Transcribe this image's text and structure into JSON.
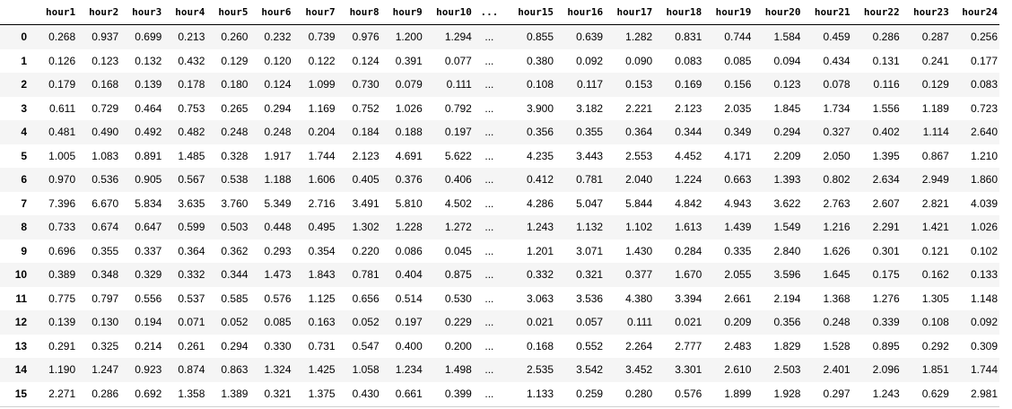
{
  "table": {
    "columns": [
      "",
      "hour1",
      "hour2",
      "hour3",
      "hour4",
      "hour5",
      "hour6",
      "hour7",
      "hour8",
      "hour9",
      "hour10",
      "...",
      "hour15",
      "hour16",
      "hour17",
      "hour18",
      "hour19",
      "hour20",
      "hour21",
      "hour22",
      "hour23",
      "hour24"
    ],
    "rows": [
      {
        "index": "0",
        "values": [
          "0.268",
          "0.937",
          "0.699",
          "0.213",
          "0.260",
          "0.232",
          "0.739",
          "0.976",
          "1.200",
          "1.294",
          "...",
          "0.855",
          "0.639",
          "1.282",
          "0.831",
          "0.744",
          "1.584",
          "0.459",
          "0.286",
          "0.287",
          "0.256"
        ]
      },
      {
        "index": "1",
        "values": [
          "0.126",
          "0.123",
          "0.132",
          "0.432",
          "0.129",
          "0.120",
          "0.122",
          "0.124",
          "0.391",
          "0.077",
          "...",
          "0.380",
          "0.092",
          "0.090",
          "0.083",
          "0.085",
          "0.094",
          "0.434",
          "0.131",
          "0.241",
          "0.177"
        ]
      },
      {
        "index": "2",
        "values": [
          "0.179",
          "0.168",
          "0.139",
          "0.178",
          "0.180",
          "0.124",
          "1.099",
          "0.730",
          "0.079",
          "0.111",
          "...",
          "0.108",
          "0.117",
          "0.153",
          "0.169",
          "0.156",
          "0.123",
          "0.078",
          "0.116",
          "0.129",
          "0.083"
        ]
      },
      {
        "index": "3",
        "values": [
          "0.611",
          "0.729",
          "0.464",
          "0.753",
          "0.265",
          "0.294",
          "1.169",
          "0.752",
          "1.026",
          "0.792",
          "...",
          "3.900",
          "3.182",
          "2.221",
          "2.123",
          "2.035",
          "1.845",
          "1.734",
          "1.556",
          "1.189",
          "0.723"
        ]
      },
      {
        "index": "4",
        "values": [
          "0.481",
          "0.490",
          "0.492",
          "0.482",
          "0.248",
          "0.248",
          "0.204",
          "0.184",
          "0.188",
          "0.197",
          "...",
          "0.356",
          "0.355",
          "0.364",
          "0.344",
          "0.349",
          "0.294",
          "0.327",
          "0.402",
          "1.114",
          "2.640"
        ]
      },
      {
        "index": "5",
        "values": [
          "1.005",
          "1.083",
          "0.891",
          "1.485",
          "0.328",
          "1.917",
          "1.744",
          "2.123",
          "4.691",
          "5.622",
          "...",
          "4.235",
          "3.443",
          "2.553",
          "4.452",
          "4.171",
          "2.209",
          "2.050",
          "1.395",
          "0.867",
          "1.210"
        ]
      },
      {
        "index": "6",
        "values": [
          "0.970",
          "0.536",
          "0.905",
          "0.567",
          "0.538",
          "1.188",
          "1.606",
          "0.405",
          "0.376",
          "0.406",
          "...",
          "0.412",
          "0.781",
          "2.040",
          "1.224",
          "0.663",
          "1.393",
          "0.802",
          "2.634",
          "2.949",
          "1.860"
        ]
      },
      {
        "index": "7",
        "values": [
          "7.396",
          "6.670",
          "5.834",
          "3.635",
          "3.760",
          "5.349",
          "2.716",
          "3.491",
          "5.810",
          "4.502",
          "...",
          "4.286",
          "5.047",
          "5.844",
          "4.842",
          "4.943",
          "3.622",
          "2.763",
          "2.607",
          "2.821",
          "4.039"
        ]
      },
      {
        "index": "8",
        "values": [
          "0.733",
          "0.674",
          "0.647",
          "0.599",
          "0.503",
          "0.448",
          "0.495",
          "1.302",
          "1.228",
          "1.272",
          "...",
          "1.243",
          "1.132",
          "1.102",
          "1.613",
          "1.439",
          "1.549",
          "1.216",
          "2.291",
          "1.421",
          "1.026"
        ]
      },
      {
        "index": "9",
        "values": [
          "0.696",
          "0.355",
          "0.337",
          "0.364",
          "0.362",
          "0.293",
          "0.354",
          "0.220",
          "0.086",
          "0.045",
          "...",
          "1.201",
          "3.071",
          "1.430",
          "0.284",
          "0.335",
          "2.840",
          "1.626",
          "0.301",
          "0.121",
          "0.102"
        ]
      },
      {
        "index": "10",
        "values": [
          "0.389",
          "0.348",
          "0.329",
          "0.332",
          "0.344",
          "1.473",
          "1.843",
          "0.781",
          "0.404",
          "0.875",
          "...",
          "0.332",
          "0.321",
          "0.377",
          "1.670",
          "2.055",
          "3.596",
          "1.645",
          "0.175",
          "0.162",
          "0.133"
        ]
      },
      {
        "index": "11",
        "values": [
          "0.775",
          "0.797",
          "0.556",
          "0.537",
          "0.585",
          "0.576",
          "1.125",
          "0.656",
          "0.514",
          "0.530",
          "...",
          "3.063",
          "3.536",
          "4.380",
          "3.394",
          "2.661",
          "2.194",
          "1.368",
          "1.276",
          "1.305",
          "1.148"
        ]
      },
      {
        "index": "12",
        "values": [
          "0.139",
          "0.130",
          "0.194",
          "0.071",
          "0.052",
          "0.085",
          "0.163",
          "0.052",
          "0.197",
          "0.229",
          "...",
          "0.021",
          "0.057",
          "0.111",
          "0.021",
          "0.209",
          "0.356",
          "0.248",
          "0.339",
          "0.108",
          "0.092"
        ]
      },
      {
        "index": "13",
        "values": [
          "0.291",
          "0.325",
          "0.214",
          "0.261",
          "0.294",
          "0.330",
          "0.731",
          "0.547",
          "0.400",
          "0.200",
          "...",
          "0.168",
          "0.552",
          "2.264",
          "2.777",
          "2.483",
          "1.829",
          "1.528",
          "0.895",
          "0.292",
          "0.309"
        ]
      },
      {
        "index": "14",
        "values": [
          "1.190",
          "1.247",
          "0.923",
          "0.874",
          "0.863",
          "1.324",
          "1.425",
          "1.058",
          "1.234",
          "1.498",
          "...",
          "2.535",
          "3.542",
          "3.452",
          "3.301",
          "2.610",
          "2.503",
          "2.401",
          "2.096",
          "1.851",
          "1.744"
        ]
      },
      {
        "index": "15",
        "values": [
          "2.271",
          "0.286",
          "0.692",
          "1.358",
          "1.389",
          "0.321",
          "1.375",
          "0.430",
          "0.661",
          "0.399",
          "...",
          "1.133",
          "0.259",
          "0.280",
          "0.576",
          "1.899",
          "1.928",
          "0.297",
          "1.243",
          "0.629",
          "2.981"
        ]
      }
    ]
  }
}
